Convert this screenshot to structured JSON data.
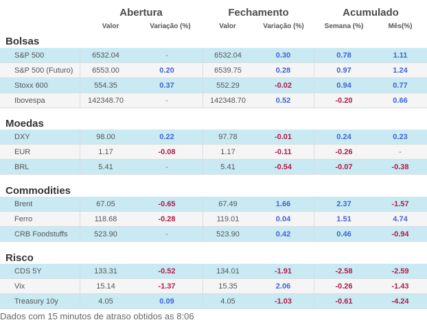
{
  "groups": [
    "Abertura",
    "Fechamento",
    "Acumulado"
  ],
  "subheaders": [
    "Valor",
    "Variação (%)",
    "Valor",
    "Variação (%)",
    "Semana (%)",
    "Mês(%)"
  ],
  "sections": [
    {
      "title": "Bolsas",
      "rows": [
        {
          "name": "S&P 500",
          "v1": "6532.04",
          "p1": "-",
          "v2": "6532.04",
          "p2": "0.30",
          "s": "0.78",
          "m": "1.11"
        },
        {
          "name": "S&P 500 (Futuro)",
          "v1": "6553.00",
          "p1": "0.20",
          "v2": "6539.75",
          "p2": "0.28",
          "s": "0.97",
          "m": "1.24"
        },
        {
          "name": "Stoxx 600",
          "v1": "554.35",
          "p1": "0.37",
          "v2": "552.29",
          "p2": "-0.02",
          "s": "0.94",
          "m": "0.77"
        },
        {
          "name": "Ibovespa",
          "v1": "142348.70",
          "p1": "-",
          "v2": "142348.70",
          "p2": "0.52",
          "s": "-0.20",
          "m": "0.66"
        }
      ]
    },
    {
      "title": "Moedas",
      "rows": [
        {
          "name": "DXY",
          "v1": "98.00",
          "p1": "0.22",
          "v2": "97.78",
          "p2": "-0.01",
          "s": "0.24",
          "m": "0.23"
        },
        {
          "name": "EUR",
          "v1": "1.17",
          "p1": "-0.08",
          "v2": "1.17",
          "p2": "-0.11",
          "s": "-0.26",
          "m": "-"
        },
        {
          "name": "BRL",
          "v1": "5.41",
          "p1": "-",
          "v2": "5.41",
          "p2": "-0.54",
          "s": "-0.07",
          "m": "-0.38"
        }
      ]
    },
    {
      "title": "Commodities",
      "rows": [
        {
          "name": "Brent",
          "v1": "67.05",
          "p1": "-0.65",
          "v2": "67.49",
          "p2": "1.66",
          "s": "2.37",
          "m": "-1.57"
        },
        {
          "name": "Ferro",
          "v1": "118.68",
          "p1": "-0.28",
          "v2": "119.01",
          "p2": "0.04",
          "s": "1.51",
          "m": "4.74"
        },
        {
          "name": "CRB Foodstuffs",
          "v1": "523.90",
          "p1": "-",
          "v2": "523.90",
          "p2": "0.42",
          "s": "0.46",
          "m": "-0.94"
        }
      ]
    },
    {
      "title": "Risco",
      "rows": [
        {
          "name": "CDS 5Y",
          "v1": "133.31",
          "p1": "-0.52",
          "v2": "134.01",
          "p2": "-1.91",
          "s": "-2.58",
          "m": "-2.59"
        },
        {
          "name": "Vix",
          "v1": "15.14",
          "p1": "-1.37",
          "v2": "15.35",
          "p2": "2.06",
          "s": "-0.26",
          "m": "-1.43"
        },
        {
          "name": "Treasury 10y",
          "v1": "4.05",
          "p1": "0.09",
          "v2": "4.05",
          "p2": "-1.03",
          "s": "-0.61",
          "m": "-4.24"
        }
      ]
    }
  ],
  "footer": "Dados com 15 minutos de atraso obtidos as 8:06",
  "colors": {
    "positive": "#3f63d8",
    "negative": "#b0194a",
    "row_highlight": "#c9eaf3",
    "row_plain": "#f5f5f5"
  }
}
